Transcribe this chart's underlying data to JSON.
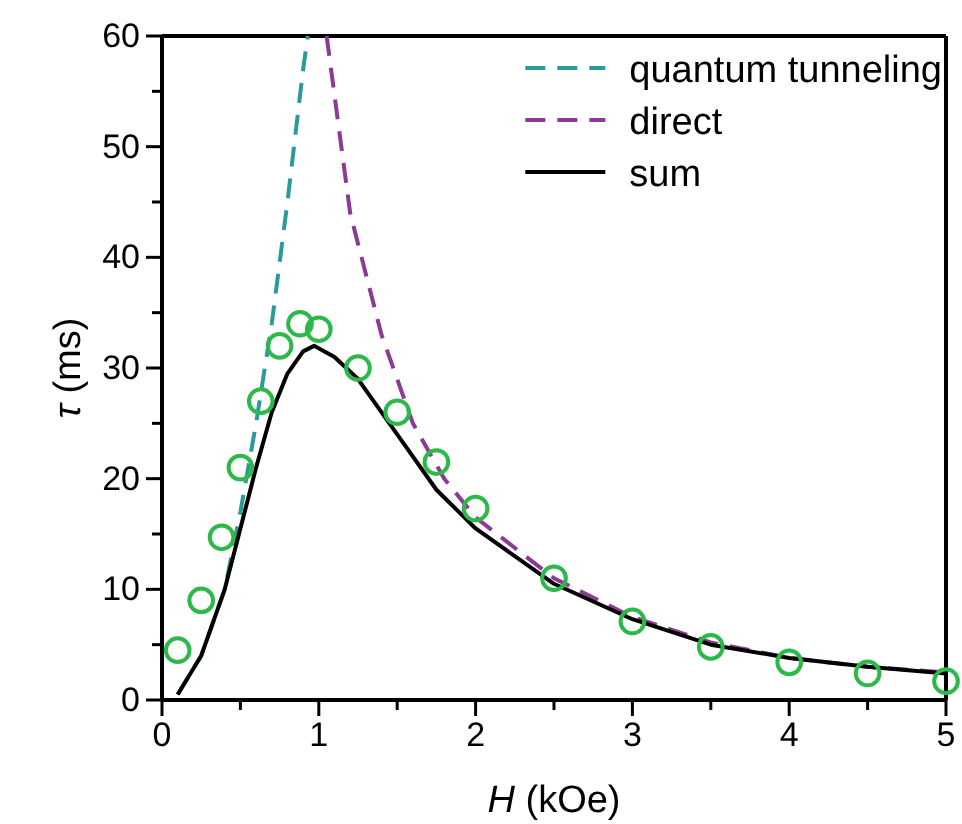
{
  "chart_data": {
    "type": "line",
    "xlabel": "H (kOe)",
    "ylabel": "τ (ms)",
    "xlim": [
      0,
      5
    ],
    "ylim": [
      0,
      60
    ],
    "xticks": [
      0,
      1,
      2,
      3,
      4,
      5
    ],
    "yticks": [
      0,
      10,
      20,
      30,
      40,
      50,
      60
    ],
    "grid": false,
    "legend": "top right",
    "series": [
      {
        "name": "quantum tunneling",
        "color": "#2a9a9e",
        "line_style": "dashed",
        "x": [
          0.1,
          0.25,
          0.4,
          0.5,
          0.6,
          0.7,
          0.8,
          0.9,
          0.93
        ],
        "values": [
          0.5,
          4,
          10,
          17,
          25,
          34,
          45,
          57,
          60
        ]
      },
      {
        "name": "direct",
        "color": "#8b3a96",
        "line_style": "dashed",
        "x": [
          1.05,
          1.2,
          1.4,
          1.6,
          1.8,
          2.0,
          2.5,
          3,
          3.5,
          4,
          4.5,
          5
        ],
        "values": [
          60,
          44,
          33,
          25,
          20,
          16.5,
          11,
          7.5,
          5.2,
          3.8,
          3,
          2.5
        ]
      },
      {
        "name": "sum",
        "color": "#000000",
        "line_style": "solid",
        "x": [
          0.1,
          0.25,
          0.4,
          0.5,
          0.6,
          0.7,
          0.8,
          0.9,
          0.97,
          1.1,
          1.25,
          1.5,
          1.75,
          2.0,
          2.5,
          3,
          3.5,
          4,
          4.5,
          5
        ],
        "values": [
          0.5,
          4,
          10,
          15.5,
          21,
          26,
          29.5,
          31.5,
          32,
          31,
          29,
          24,
          19,
          15.5,
          10.5,
          7.3,
          5,
          3.8,
          3,
          2.4
        ]
      },
      {
        "type": "scatter",
        "color": "#2db84a",
        "marker": "circle",
        "x": [
          0.1,
          0.25,
          0.38,
          0.5,
          0.63,
          0.75,
          0.88,
          1.0,
          1.25,
          1.5,
          1.75,
          2.0,
          2.5,
          3.0,
          3.5,
          4.0,
          4.5,
          5.0
        ],
        "values": [
          4.5,
          9,
          14.7,
          21,
          27,
          32,
          34,
          33.5,
          30,
          26,
          21.5,
          17.3,
          11,
          7.1,
          4.8,
          3.4,
          2.4,
          1.7
        ]
      }
    ]
  }
}
